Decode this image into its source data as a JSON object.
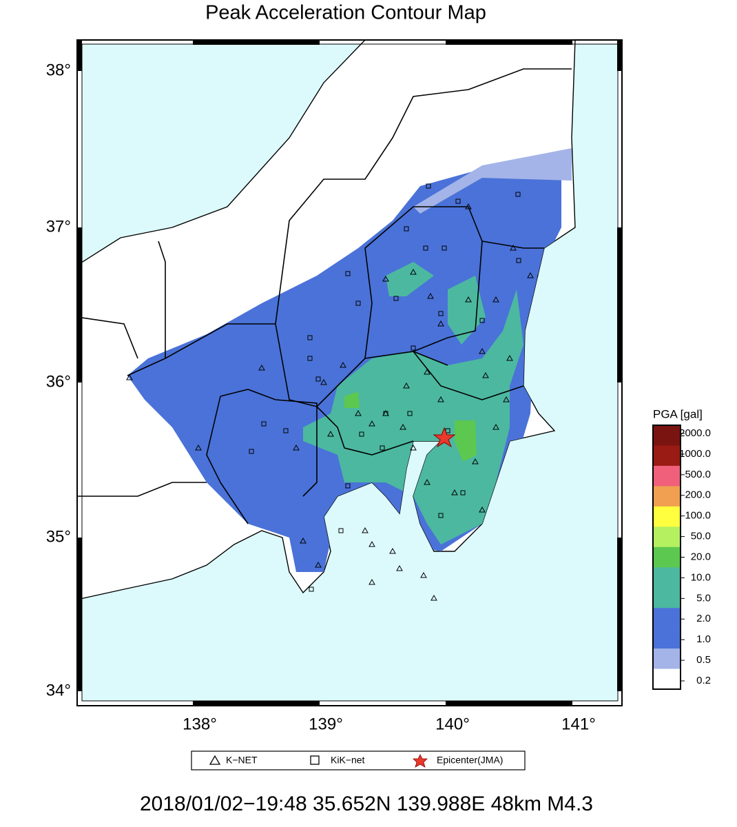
{
  "title": "Peak Acceleration Contour Map",
  "lat_labels": [
    "38°",
    "37°",
    "36°",
    "35°",
    "34°"
  ],
  "lon_labels": [
    "138°",
    "139°",
    "140°",
    "141°"
  ],
  "colorbar": {
    "title": "PGA [gal]",
    "labels": [
      "2000.0",
      "1000.0",
      "500.0",
      "200.0",
      "100.0",
      "50.0",
      "20.0",
      "10.0",
      "5.0",
      "2.0",
      "1.0",
      "0.5",
      "0.2"
    ],
    "colors": [
      "#7a1410",
      "#9a1a14",
      "#f0607a",
      "#f0a050",
      "#ffff40",
      "#b4f060",
      "#5cc850",
      "#4cb8a0",
      "#4cb8a0",
      "#4a72d8",
      "#4a72d8",
      "#a4b4e8",
      "#ffffff"
    ]
  },
  "legend": [
    "K−NET",
    "KiK−net",
    "Epicenter(JMA)"
  ],
  "caption": "2018/01/02−19:48 35.652N 139.988E 48km M4.3"
}
